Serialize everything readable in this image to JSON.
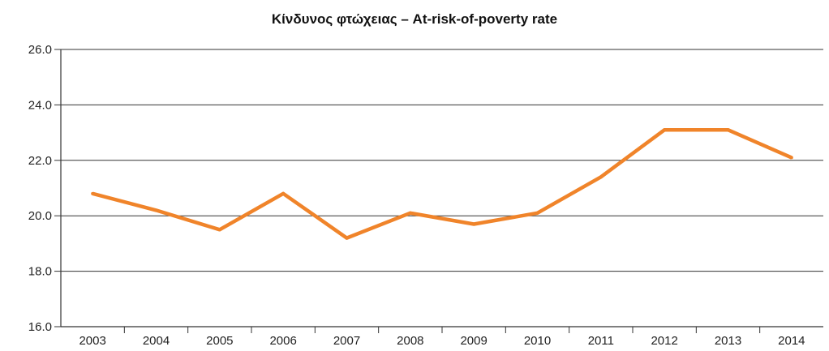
{
  "chart_data": {
    "type": "line",
    "title": "Κίνδυνος φτώχειας – At-risk-of-poverty rate",
    "categories": [
      "2003",
      "2004",
      "2005",
      "2006",
      "2007",
      "2008",
      "2009",
      "2010",
      "2011",
      "2012",
      "2013",
      "2014"
    ],
    "series": [
      {
        "values": [
          20.8,
          20.2,
          19.5,
          20.8,
          19.2,
          20.1,
          19.7,
          20.1,
          21.4,
          23.1,
          23.1,
          22.1
        ],
        "color": "#f0842a"
      }
    ],
    "yticks": [
      "16.0",
      "18.0",
      "20.0",
      "22.0",
      "24.0",
      "26.0"
    ],
    "ylim": [
      16,
      26
    ],
    "grid": true,
    "xlabel": "",
    "ylabel": ""
  }
}
